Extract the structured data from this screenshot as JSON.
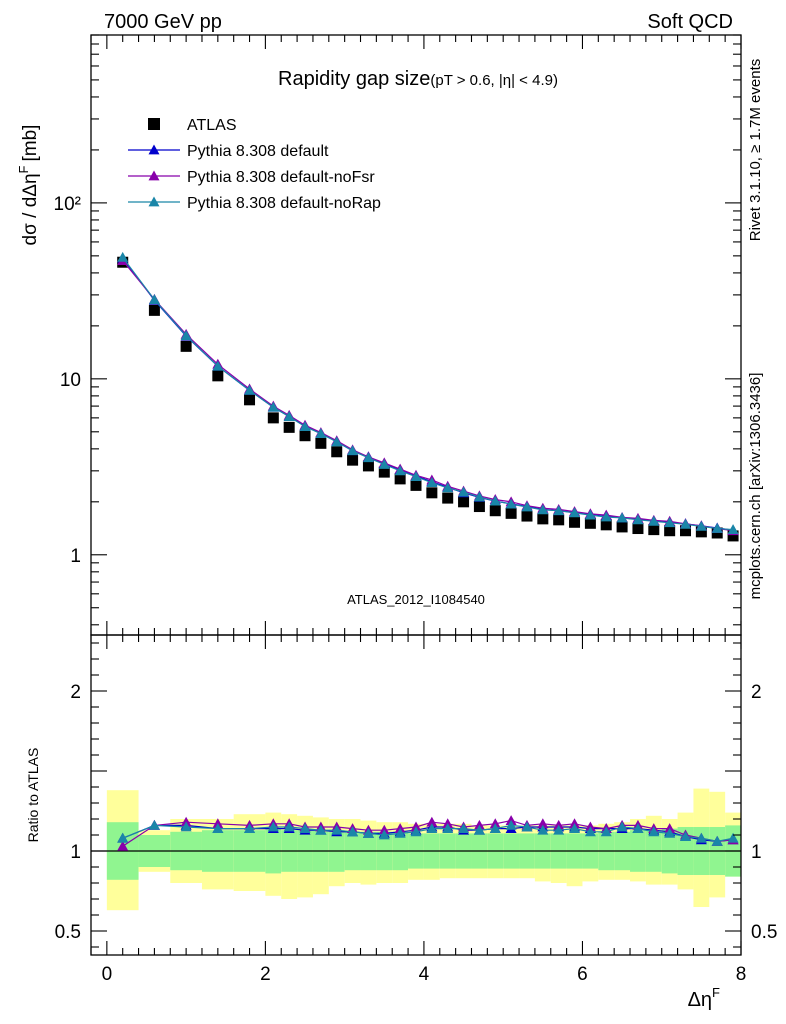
{
  "header": {
    "left": "7000 GeV pp",
    "right": "Soft QCD"
  },
  "side_labels": {
    "rivet": "Rivet 3.1.10, ≥ 1.7M events",
    "mcplots": "mcplots.cern.ch [arXiv:1306.3436]"
  },
  "chart_data": {
    "type": "scatter",
    "title": "Rapidity gap size",
    "title_cuts": "(pT > 0.6, |η| < 4.9)",
    "analysis_id": "ATLAS_2012_I1084540",
    "xlabel": "Δη",
    "xlabel_sup": "F",
    "ylabel": "dσ / dΔη",
    "ylabel_sup": "F",
    "ylabel_unit": "[mb]",
    "xlim": [
      -0.2,
      8.0
    ],
    "ylim": [
      0.35,
      900
    ],
    "y_log": true,
    "x_ticks": [
      "0",
      "2",
      "4",
      "6",
      "8"
    ],
    "y_ticks": [
      "1",
      "10",
      "10²"
    ],
    "legend": [
      {
        "name": "ATLAS",
        "color": "#000000",
        "marker": "square"
      },
      {
        "name": "Pythia 8.308 default",
        "color": "#0000cc",
        "marker": "triangle"
      },
      {
        "name": "Pythia 8.308 default-noFsr",
        "color": "#8800aa",
        "marker": "triangle"
      },
      {
        "name": "Pythia 8.308 default-noRap",
        "color": "#1a86a8",
        "marker": "triangle"
      }
    ],
    "x": [
      0.2,
      0.6,
      1.0,
      1.4,
      1.8,
      2.1,
      2.3,
      2.5,
      2.7,
      2.9,
      3.1,
      3.3,
      3.5,
      3.7,
      3.9,
      4.1,
      4.3,
      4.5,
      4.7,
      4.9,
      5.1,
      5.3,
      5.5,
      5.7,
      5.9,
      6.1,
      6.3,
      6.5,
      6.7,
      6.9,
      7.1,
      7.3,
      7.5,
      7.7,
      7.9
    ],
    "series": [
      {
        "name": "ATLAS",
        "values": [
          46,
          24.5,
          15.3,
          10.4,
          7.6,
          6.0,
          5.3,
          4.75,
          4.3,
          3.85,
          3.45,
          3.2,
          2.95,
          2.7,
          2.48,
          2.25,
          2.1,
          2.0,
          1.88,
          1.78,
          1.72,
          1.66,
          1.6,
          1.58,
          1.53,
          1.51,
          1.48,
          1.44,
          1.41,
          1.39,
          1.37,
          1.37,
          1.35,
          1.33,
          1.28
        ]
      },
      {
        "name": "Pythia 8.308 default",
        "values": [
          48.5,
          28,
          17.5,
          11.8,
          8.6,
          6.9,
          6.1,
          5.4,
          4.9,
          4.4,
          3.9,
          3.6,
          3.3,
          3.05,
          2.8,
          2.6,
          2.42,
          2.25,
          2.12,
          2.02,
          1.95,
          1.88,
          1.81,
          1.78,
          1.74,
          1.7,
          1.67,
          1.62,
          1.59,
          1.56,
          1.53,
          1.5,
          1.46,
          1.42,
          1.38
        ]
      },
      {
        "name": "Pythia 8.308 default-noFsr",
        "values": [
          47,
          28.3,
          17.9,
          12.1,
          8.75,
          7.0,
          6.2,
          5.45,
          4.95,
          4.45,
          3.95,
          3.6,
          3.33,
          3.07,
          2.83,
          2.66,
          2.45,
          2.3,
          2.16,
          2.06,
          2.0,
          1.9,
          1.84,
          1.81,
          1.76,
          1.71,
          1.68,
          1.63,
          1.61,
          1.57,
          1.55,
          1.5,
          1.46,
          1.41,
          1.37
        ]
      },
      {
        "name": "Pythia 8.308 default-noRap",
        "values": [
          49,
          28.2,
          17.6,
          11.8,
          8.6,
          6.9,
          6.1,
          5.35,
          4.88,
          4.38,
          3.9,
          3.56,
          3.26,
          3.0,
          2.78,
          2.57,
          2.4,
          2.27,
          2.13,
          2.02,
          1.94,
          1.87,
          1.8,
          1.78,
          1.73,
          1.68,
          1.64,
          1.62,
          1.58,
          1.55,
          1.52,
          1.49,
          1.45,
          1.41,
          1.39
        ]
      }
    ],
    "ratio": {
      "ylabel": "Ratio to ATLAS",
      "ylim": [
        0.35,
        2.35
      ],
      "y_ticks": [
        "0.5",
        "1",
        "2"
      ],
      "edges": [
        0.0,
        0.4,
        0.8,
        1.2,
        1.6,
        2.0,
        2.2,
        2.4,
        2.6,
        2.8,
        3.0,
        3.2,
        3.4,
        3.6,
        3.8,
        4.0,
        4.2,
        4.4,
        4.6,
        4.8,
        5.0,
        5.2,
        5.4,
        5.6,
        5.8,
        6.0,
        6.2,
        6.4,
        6.6,
        6.8,
        7.0,
        7.2,
        7.4,
        7.6,
        7.8,
        8.0
      ],
      "band_stat": [
        0.18,
        0.1,
        0.12,
        0.13,
        0.13,
        0.14,
        0.13,
        0.13,
        0.13,
        0.13,
        0.12,
        0.12,
        0.12,
        0.12,
        0.11,
        0.11,
        0.11,
        0.11,
        0.11,
        0.11,
        0.11,
        0.11,
        0.11,
        0.11,
        0.11,
        0.11,
        0.12,
        0.12,
        0.13,
        0.13,
        0.14,
        0.15,
        0.15,
        0.15,
        0.16
      ],
      "band_total_up": [
        0.38,
        0.13,
        0.2,
        0.2,
        0.23,
        0.24,
        0.23,
        0.22,
        0.21,
        0.2,
        0.2,
        0.19,
        0.18,
        0.18,
        0.17,
        0.17,
        0.17,
        0.17,
        0.16,
        0.16,
        0.16,
        0.16,
        0.16,
        0.16,
        0.16,
        0.16,
        0.17,
        0.18,
        0.2,
        0.22,
        0.2,
        0.24,
        0.39,
        0.37,
        0.24
      ],
      "band_total_down": [
        0.37,
        0.13,
        0.2,
        0.24,
        0.25,
        0.28,
        0.3,
        0.29,
        0.27,
        0.22,
        0.2,
        0.21,
        0.2,
        0.2,
        0.18,
        0.18,
        0.17,
        0.17,
        0.17,
        0.17,
        0.17,
        0.17,
        0.19,
        0.2,
        0.22,
        0.19,
        0.18,
        0.18,
        0.19,
        0.21,
        0.21,
        0.24,
        0.35,
        0.29,
        0.16
      ],
      "series": [
        {
          "name": "Pythia 8.308 default",
          "values": [
            1.08,
            1.16,
            1.16,
            1.14,
            1.14,
            1.14,
            1.14,
            1.13,
            1.13,
            1.12,
            1.12,
            1.11,
            1.11,
            1.12,
            1.13,
            1.15,
            1.15,
            1.13,
            1.13,
            1.14,
            1.14,
            1.15,
            1.15,
            1.15,
            1.15,
            1.14,
            1.14,
            1.14,
            1.14,
            1.13,
            1.12,
            1.09,
            1.07,
            1.06,
            1.07
          ]
        },
        {
          "name": "Pythia 8.308 default-noFsr",
          "values": [
            1.03,
            1.16,
            1.18,
            1.17,
            1.16,
            1.17,
            1.17,
            1.15,
            1.15,
            1.15,
            1.14,
            1.13,
            1.13,
            1.14,
            1.15,
            1.18,
            1.17,
            1.15,
            1.16,
            1.17,
            1.19,
            1.16,
            1.17,
            1.16,
            1.17,
            1.15,
            1.14,
            1.16,
            1.16,
            1.14,
            1.14,
            1.1,
            1.08,
            1.06,
            1.07
          ]
        },
        {
          "name": "Pythia 8.308 default-noRap",
          "values": [
            1.08,
            1.16,
            1.15,
            1.14,
            1.14,
            1.15,
            1.15,
            1.14,
            1.13,
            1.13,
            1.12,
            1.11,
            1.1,
            1.11,
            1.12,
            1.14,
            1.14,
            1.14,
            1.13,
            1.14,
            1.16,
            1.15,
            1.13,
            1.13,
            1.14,
            1.12,
            1.12,
            1.15,
            1.14,
            1.12,
            1.11,
            1.09,
            1.08,
            1.06,
            1.08
          ]
        }
      ]
    }
  },
  "colors": {
    "band_stat": "#90f590",
    "band_total": "#ffff9b",
    "data_marker": "#000000",
    "side_label": "#808080",
    "analysis_label": "#999999"
  }
}
